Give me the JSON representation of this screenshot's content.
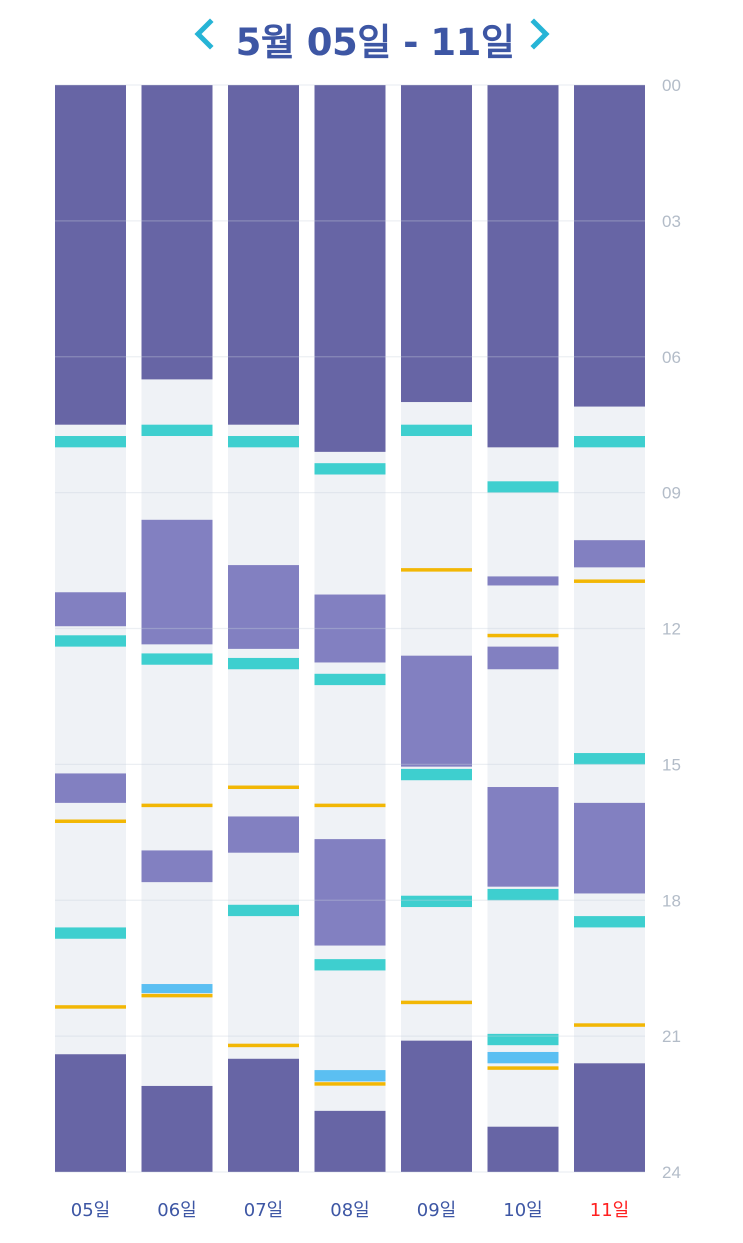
{
  "header": {
    "title": "5월 05일 - 11일",
    "prev_icon": "chevron-left-icon",
    "next_icon": "chevron-right-icon"
  },
  "colors": {
    "title": "#3d56a4",
    "nav_arrow": "#26b4d6",
    "awake_background": "#eff2f6",
    "night_sleep": "#6765a5",
    "nap": "#8280c1",
    "teal_event": "#3ecfcf",
    "yellow_event": "#f2b705",
    "blue_event": "#5bbff2",
    "axis_text": "#b3bcc8",
    "day_label": "#3d56a4",
    "today_label": "#ff2020"
  },
  "chart_data": {
    "type": "timeline",
    "title": "5월 05일 - 11일",
    "y_axis": {
      "unit": "hour",
      "range": [
        0,
        24
      ],
      "position": "right",
      "ticks": [
        "00",
        "03",
        "06",
        "09",
        "12",
        "15",
        "18",
        "21",
        "24"
      ],
      "tick_values": [
        0,
        3,
        6,
        9,
        12,
        15,
        18,
        21,
        24
      ]
    },
    "grid": true,
    "categories": [
      "05일",
      "06일",
      "07일",
      "08일",
      "09일",
      "10일",
      "11일"
    ],
    "highlight_category": "11일",
    "series": [
      {
        "name": "night-sleep",
        "kind": "range",
        "color_key": "night_sleep",
        "days": [
          [
            [
              0,
              7.5
            ],
            [
              21.4,
              24
            ]
          ],
          [
            [
              0,
              6.5
            ],
            [
              22.1,
              24
            ]
          ],
          [
            [
              0,
              7.5
            ],
            [
              21.5,
              24
            ]
          ],
          [
            [
              0,
              8.1
            ],
            [
              22.65,
              24
            ]
          ],
          [
            [
              0,
              7.0
            ],
            [
              21.1,
              24
            ]
          ],
          [
            [
              0,
              8.0
            ],
            [
              23.0,
              24
            ]
          ],
          [
            [
              0,
              7.1
            ],
            [
              21.6,
              24
            ]
          ]
        ]
      },
      {
        "name": "nap",
        "kind": "range",
        "color_key": "nap",
        "days": [
          [
            [
              11.2,
              11.95
            ],
            [
              15.2,
              15.85
            ]
          ],
          [
            [
              9.6,
              12.35
            ],
            [
              16.9,
              17.6
            ]
          ],
          [
            [
              10.6,
              12.45
            ],
            [
              16.15,
              16.95
            ]
          ],
          [
            [
              11.25,
              12.75
            ],
            [
              16.65,
              19.0
            ]
          ],
          [
            [
              12.6,
              15.05
            ]
          ],
          [
            [
              10.85,
              11.05
            ],
            [
              12.4,
              12.9
            ],
            [
              15.5,
              17.7
            ]
          ],
          [
            [
              10.05,
              10.65
            ],
            [
              15.85,
              17.85
            ]
          ]
        ]
      },
      {
        "name": "teal-event",
        "kind": "range",
        "color_key": "teal_event",
        "days": [
          [
            [
              7.75,
              8.0
            ],
            [
              12.15,
              12.4
            ],
            [
              18.6,
              18.85
            ]
          ],
          [
            [
              7.5,
              7.75
            ],
            [
              12.55,
              12.8
            ]
          ],
          [
            [
              7.75,
              8.0
            ],
            [
              12.65,
              12.9
            ],
            [
              18.1,
              18.35
            ]
          ],
          [
            [
              8.35,
              8.6
            ],
            [
              13.0,
              13.25
            ],
            [
              19.3,
              19.55
            ]
          ],
          [
            [
              7.5,
              7.75
            ],
            [
              15.1,
              15.35
            ],
            [
              17.9,
              18.15
            ]
          ],
          [
            [
              8.75,
              9.0
            ],
            [
              17.75,
              18.0
            ],
            [
              20.95,
              21.2
            ]
          ],
          [
            [
              7.75,
              8.0
            ],
            [
              14.75,
              15.0
            ],
            [
              18.35,
              18.6
            ]
          ]
        ]
      },
      {
        "name": "blue-event",
        "kind": "range",
        "color_key": "blue_event",
        "days": [
          [],
          [
            [
              19.85,
              20.05
            ]
          ],
          [],
          [
            [
              21.75,
              22.0
            ]
          ],
          [],
          [
            [
              21.35,
              21.6
            ]
          ],
          []
        ]
      },
      {
        "name": "yellow-event",
        "kind": "point",
        "color_key": "yellow_event",
        "days": [
          [
            16.25,
            20.35
          ],
          [
            15.9,
            20.1
          ],
          [
            15.5,
            21.2
          ],
          [
            15.9,
            22.05
          ],
          [
            10.7,
            20.25
          ],
          [
            12.15,
            21.7
          ],
          [
            10.95,
            20.75
          ]
        ]
      }
    ]
  }
}
